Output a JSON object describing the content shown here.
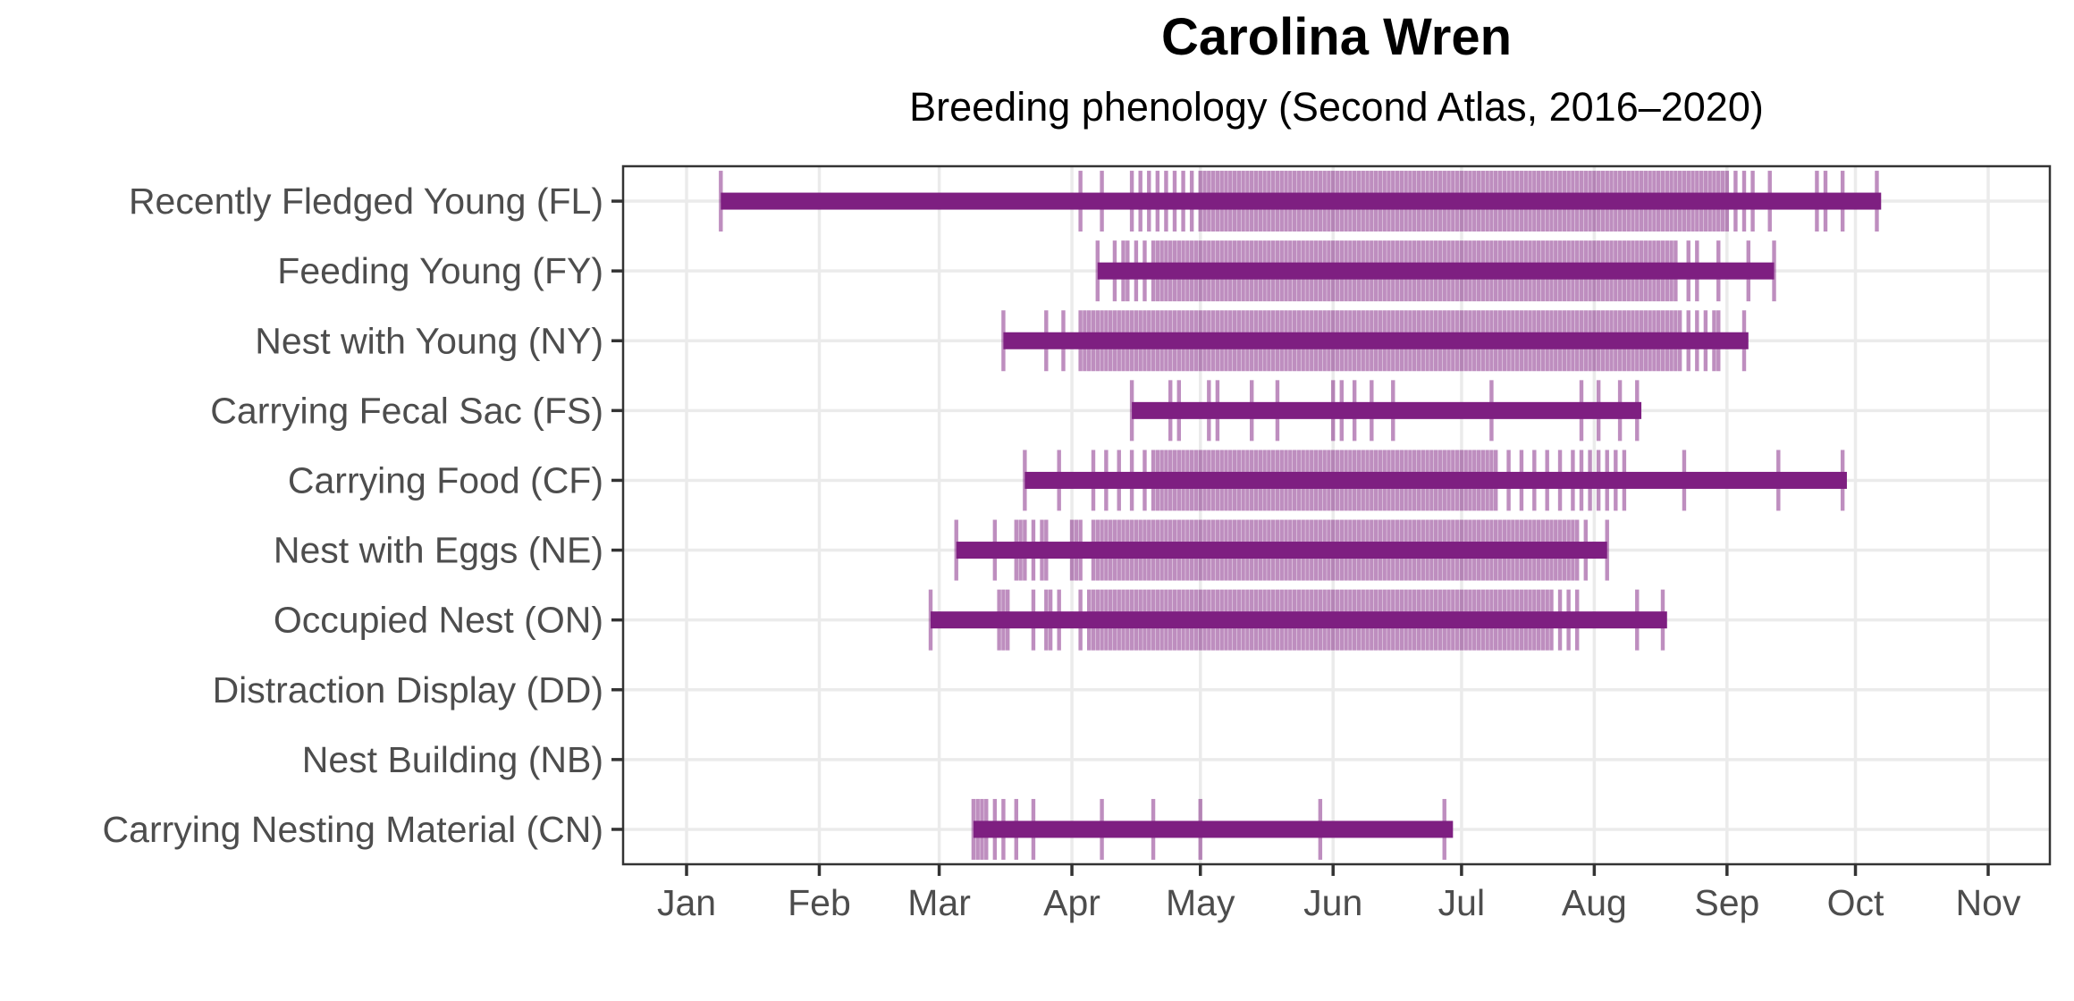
{
  "title": "Carolina Wren",
  "subtitle": "Breeding phenology (Second Atlas, 2016–2020)",
  "colors": {
    "bar": "#7E1F81",
    "rug_tick": "#7E1E80",
    "rug_opacity": 0.5,
    "axis_text": "#4D4D4D",
    "title_text": "#000000",
    "panel_border": "#333333",
    "axis_tick": "#333333",
    "gridline": "#EBEBEB",
    "background": "#FFFFFF"
  },
  "chart_data": {
    "type": "bar",
    "subtype": "horizontal_date_range_with_observation_rug",
    "title": "Carolina Wren",
    "subtitle": "Breeding phenology (Second Atlas, 2016–2020)",
    "units": "day_of_year",
    "grid": "major_only",
    "legend": "none",
    "x_axis": {
      "label": "",
      "tick_labels": [
        "Jan",
        "Feb",
        "Mar",
        "Apr",
        "May",
        "Jun",
        "Jul",
        "Aug",
        "Sep",
        "Oct",
        "Nov"
      ],
      "tick_days": [
        1,
        32,
        60,
        91,
        121,
        152,
        182,
        213,
        244,
        274,
        305
      ],
      "range_days": [
        -14,
        320
      ]
    },
    "y_axis": {
      "label": "",
      "order": "top_to_bottom"
    },
    "categories": [
      {
        "code": "FL",
        "label": "Recently Fledged Young (FL)",
        "range": [
          9,
          280
        ],
        "ticks": [
          9,
          93,
          98,
          105,
          [
            107,
            119,
            2
          ],
          [
            121,
            244,
            1
          ],
          246,
          248,
          250,
          254,
          265,
          267,
          271,
          279
        ]
      },
      {
        "code": "FY",
        "label": "Feeding Young (FY)",
        "range": [
          97,
          255
        ],
        "ticks": [
          97,
          101,
          103,
          104,
          106,
          108,
          [
            110,
            232,
            1
          ],
          235,
          237,
          242,
          249,
          255
        ]
      },
      {
        "code": "NY",
        "label": "Nest with Young (NY)",
        "range": [
          75,
          249
        ],
        "ticks": [
          75,
          85,
          89,
          [
            93,
            233,
            1
          ],
          235,
          237,
          239,
          241,
          242,
          248
        ]
      },
      {
        "code": "FS",
        "label": "Carrying Fecal Sac (FS)",
        "range": [
          105,
          224
        ],
        "ticks": [
          105,
          114,
          116,
          123,
          125,
          133,
          139,
          152,
          154,
          157,
          161,
          166,
          189,
          210,
          214,
          219,
          223
        ]
      },
      {
        "code": "CF",
        "label": "Carrying Food (CF)",
        "range": [
          80,
          272
        ],
        "ticks": [
          80,
          88,
          96,
          99,
          102,
          105,
          108,
          [
            110,
            190,
            1
          ],
          [
            193,
            208,
            3
          ],
          [
            210,
            220,
            2
          ],
          234,
          256,
          271
        ]
      },
      {
        "code": "NE",
        "label": "Nest with Eggs (NE)",
        "range": [
          64,
          216
        ],
        "ticks": [
          64,
          73,
          78,
          79,
          80,
          82,
          84,
          85,
          91,
          92,
          93,
          [
            96,
            209,
            1
          ],
          211,
          216
        ]
      },
      {
        "code": "ON",
        "label": "Occupied Nest (ON)",
        "range": [
          58,
          230
        ],
        "ticks": [
          58,
          74,
          75,
          76,
          82,
          85,
          86,
          88,
          93,
          [
            95,
            203,
            1
          ],
          205,
          207,
          209,
          223,
          229
        ]
      },
      {
        "code": "DD",
        "label": "Distraction Display (DD)",
        "range": null,
        "ticks": []
      },
      {
        "code": "NB",
        "label": "Nest Building (NB)",
        "range": null,
        "ticks": []
      },
      {
        "code": "CN",
        "label": "Carrying Nesting Material (CN)",
        "range": [
          68,
          180
        ],
        "ticks": [
          68,
          69,
          70,
          71,
          73,
          75,
          78,
          82,
          98,
          110,
          121,
          149,
          178
        ]
      }
    ]
  }
}
